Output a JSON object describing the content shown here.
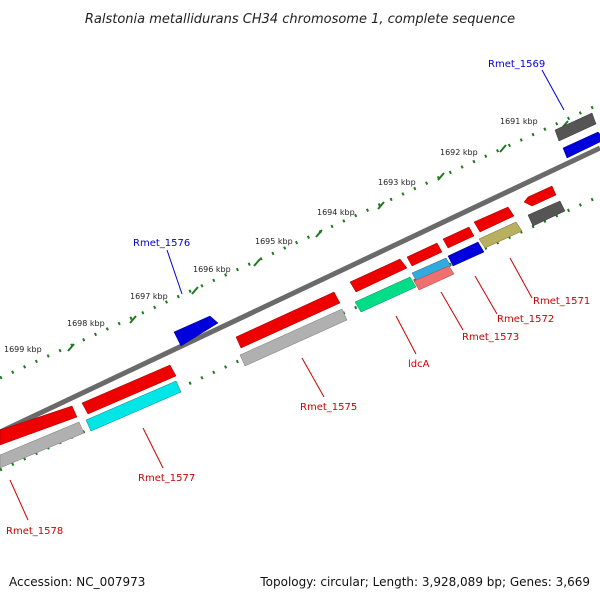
{
  "title": "Ralstonia metallidurans CH34 chromosome 1, complete sequence",
  "footer": {
    "accession": "Accession: NC_007973",
    "summary": "Topology: circular; Length: 3,928,089 bp; Genes: 3,669"
  },
  "colors": {
    "backbone": "#7a7a7a",
    "tick": "#1f7a1f",
    "forward_label": "#0000cc",
    "reverse_label": "#cc0000"
  },
  "scale_ticks": [
    "1691 kbp",
    "1692 kbp",
    "1693 kbp",
    "1694 kbp",
    "1695 kbp",
    "1696 kbp",
    "1697 kbp",
    "1698 kbp",
    "1699 kbp"
  ],
  "gene_labels": {
    "rmet_1569": "Rmet_1569",
    "rmet_1576": "Rmet_1576",
    "rmet_1571": "Rmet_1571",
    "rmet_1572": "Rmet_1572",
    "rmet_1573": "Rmet_1573",
    "ldca": "ldcA",
    "rmet_1575": "Rmet_1575",
    "rmet_1577": "Rmet_1577",
    "rmet_1578": "Rmet_1578"
  },
  "feature_colors": {
    "red": "#ee0000",
    "blue": "#0000dd",
    "dark_gray": "#555555",
    "light_gray": "#b0b0b0",
    "cyan": "#00e5e5",
    "green": "#00dd88",
    "pink": "#f07070",
    "olive": "#b8b060",
    "mid_blue": "#33aadd"
  }
}
